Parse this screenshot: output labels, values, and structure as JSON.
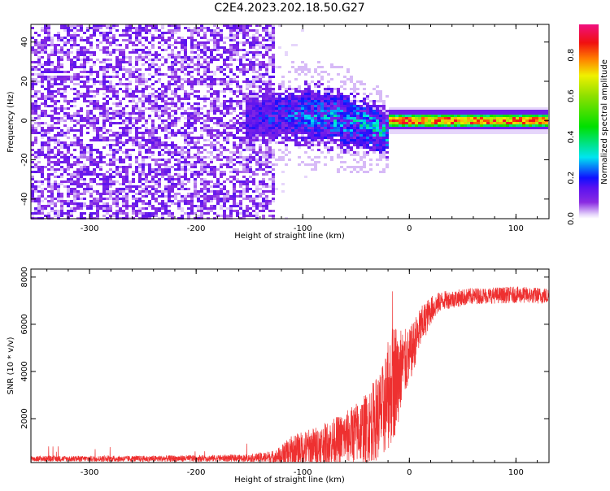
{
  "title": "C2E4.2023.202.18.50.G27",
  "chart_data": [
    {
      "type": "heatmap",
      "xlabel": "Height of straight line (km)",
      "ylabel": "Frequency (Hz)",
      "xlim": [
        -355,
        131
      ],
      "ylim": [
        -50,
        49
      ],
      "xticks": [
        -300,
        -200,
        -100,
        0,
        100
      ],
      "xtick_labels": [
        "-300",
        "-200",
        "-100",
        "0",
        "100"
      ],
      "yticks": [
        -40,
        -20,
        0,
        20,
        40
      ],
      "ytick_labels": [
        "-40",
        "-20",
        "0",
        "20",
        "40"
      ],
      "colorbar": {
        "label": "Normalized spectral amplitude",
        "range": [
          0,
          0.95
        ],
        "ticks": [
          0.0,
          0.2,
          0.4,
          0.6,
          0.8
        ],
        "tick_labels": [
          "0.0",
          "0.2",
          "0.4",
          "0.6",
          "0.8"
        ],
        "colors": [
          {
            "v": 0.0,
            "c": "#ffffff"
          },
          {
            "v": 0.02,
            "c": "#e6d6fb"
          },
          {
            "v": 0.08,
            "c": "#8a2be2"
          },
          {
            "v": 0.15,
            "c": "#5a12f0"
          },
          {
            "v": 0.2,
            "c": "#1010ff"
          },
          {
            "v": 0.3,
            "c": "#00e5f0"
          },
          {
            "v": 0.45,
            "c": "#00e000"
          },
          {
            "v": 0.6,
            "c": "#8ee000"
          },
          {
            "v": 0.7,
            "c": "#f0f000"
          },
          {
            "v": 0.78,
            "c": "#ff8000"
          },
          {
            "v": 0.86,
            "c": "#f01010"
          },
          {
            "v": 0.95,
            "c": "#f01080"
          }
        ]
      },
      "regions": [
        {
          "name": "noise",
          "x": [
            -355,
            -125
          ],
          "freq": [
            -50,
            49
          ],
          "amplitude": [
            0.02,
            0.15
          ]
        },
        {
          "name": "transition",
          "x": [
            -155,
            -20
          ],
          "freq_center": 0,
          "freq_halfwidth": [
            10,
            8
          ],
          "amplitude": [
            0.08,
            0.45
          ]
        },
        {
          "name": "carrier",
          "x": [
            -20,
            131
          ],
          "freq_center": 0,
          "freq_halfwidth": [
            3,
            3
          ],
          "amplitude": [
            0.6,
            0.9
          ]
        }
      ]
    },
    {
      "type": "line",
      "xlabel": "Height of straight line (km)",
      "ylabel": "SNR (10 * v/v)",
      "xlim": [
        -355,
        131
      ],
      "ylim": [
        140,
        8340
      ],
      "xticks": [
        -300,
        -200,
        -100,
        0,
        100
      ],
      "xtick_labels": [
        "-300",
        "-200",
        "-100",
        "0",
        "100"
      ],
      "yticks": [
        2000,
        4000,
        6000,
        8000
      ],
      "ytick_labels": [
        "2000",
        "4000",
        "6000",
        "8000"
      ],
      "color": "#ee3030",
      "envelope": {
        "x": [
          -355,
          -250,
          -150,
          -125,
          -110,
          -80,
          -60,
          -40,
          -25,
          -15,
          -5,
          0,
          10,
          20,
          30,
          60,
          100,
          131
        ],
        "mean": [
          300,
          300,
          330,
          380,
          600,
          900,
          1200,
          1600,
          2300,
          3600,
          4300,
          4600,
          5800,
          6600,
          7000,
          7200,
          7250,
          7200
        ],
        "spread": [
          120,
          130,
          150,
          300,
          700,
          900,
          1100,
          1500,
          2000,
          2600,
          1500,
          1200,
          900,
          600,
          400,
          350,
          350,
          350
        ]
      }
    }
  ]
}
